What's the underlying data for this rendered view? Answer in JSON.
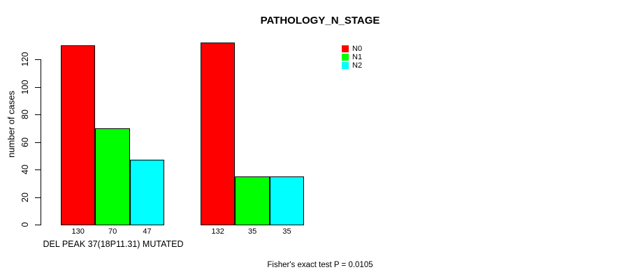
{
  "chart_data": {
    "type": "bar",
    "title": "PATHOLOGY_N_STAGE",
    "ylabel": "number of cases",
    "xlabel": "",
    "categories": [
      "DEL PEAK 37(18P11.31) MUTATED",
      ""
    ],
    "series": [
      {
        "name": "N0",
        "color": "#ff0000",
        "values": [
          130,
          132
        ]
      },
      {
        "name": "N1",
        "color": "#00ff00",
        "values": [
          70,
          35
        ]
      },
      {
        "name": "N2",
        "color": "#00ffff",
        "values": [
          47,
          35
        ]
      }
    ],
    "bar_value_labels": [
      [
        "130",
        "70",
        "47"
      ],
      [
        "132",
        "35",
        "35"
      ]
    ],
    "yticks": [
      0,
      20,
      40,
      60,
      80,
      100,
      120
    ],
    "ylim": [
      0,
      135
    ],
    "grid": false,
    "legend_position": "top-right",
    "annotation": "Fisher's exact test P = 0.0105",
    "axis_color": "#000000",
    "background_color": "#ffffff"
  }
}
